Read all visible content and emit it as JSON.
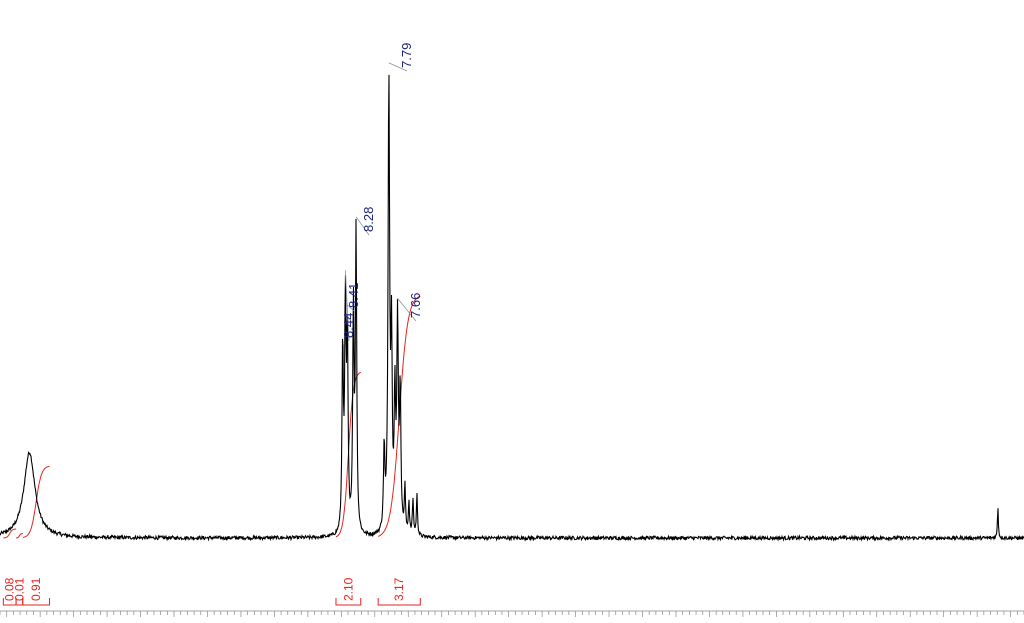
{
  "chart_data": {
    "type": "line",
    "xlim": [
      13.6,
      -1.7
    ],
    "ylim": [
      -0.02,
      1.02
    ],
    "peak_labels": [
      "8.44",
      "8.41",
      "8.28",
      "7.79",
      "7.66"
    ],
    "peaks": [
      {
        "x": 13.16,
        "height": 0.19,
        "width": 0.1
      },
      {
        "x": 8.48,
        "height": 0.41,
        "width": 0.012
      },
      {
        "x": 8.44,
        "height": 0.49,
        "width": 0.012
      },
      {
        "x": 8.41,
        "height": 0.42,
        "width": 0.012
      },
      {
        "x": 8.32,
        "height": 0.49,
        "width": 0.012
      },
      {
        "x": 8.28,
        "height": 0.66,
        "width": 0.012
      },
      {
        "x": 7.86,
        "height": 0.18,
        "width": 0.012
      },
      {
        "x": 7.79,
        "height": 1.0,
        "width": 0.014
      },
      {
        "x": 7.75,
        "height": 0.4,
        "width": 0.012
      },
      {
        "x": 7.7,
        "height": 0.28,
        "width": 0.012
      },
      {
        "x": 7.66,
        "height": 0.46,
        "width": 0.014
      },
      {
        "x": 7.62,
        "height": 0.3,
        "width": 0.012
      },
      {
        "x": 7.55,
        "height": 0.1,
        "width": 0.01
      },
      {
        "x": 7.49,
        "height": 0.07,
        "width": 0.01
      },
      {
        "x": 7.43,
        "height": 0.08,
        "width": 0.01
      },
      {
        "x": 7.37,
        "height": 0.09,
        "width": 0.01
      },
      {
        "x": -1.31,
        "height": 0.07,
        "width": 0.008
      }
    ],
    "integrals": [
      {
        "value": "0.08",
        "from": 13.55,
        "to": 13.36
      },
      {
        "value": "0.01",
        "from": 13.36,
        "to": 13.26
      },
      {
        "value": "0.91",
        "from": 13.26,
        "to": 12.86
      },
      {
        "value": "2.10",
        "from": 8.58,
        "to": 8.21
      },
      {
        "value": "3.17",
        "from": 7.95,
        "to": 7.32
      }
    ],
    "colors": {
      "spectrum": "#000000",
      "integral": "#e8231e",
      "peak_label": "#1a237e",
      "axis": "#888888"
    }
  }
}
